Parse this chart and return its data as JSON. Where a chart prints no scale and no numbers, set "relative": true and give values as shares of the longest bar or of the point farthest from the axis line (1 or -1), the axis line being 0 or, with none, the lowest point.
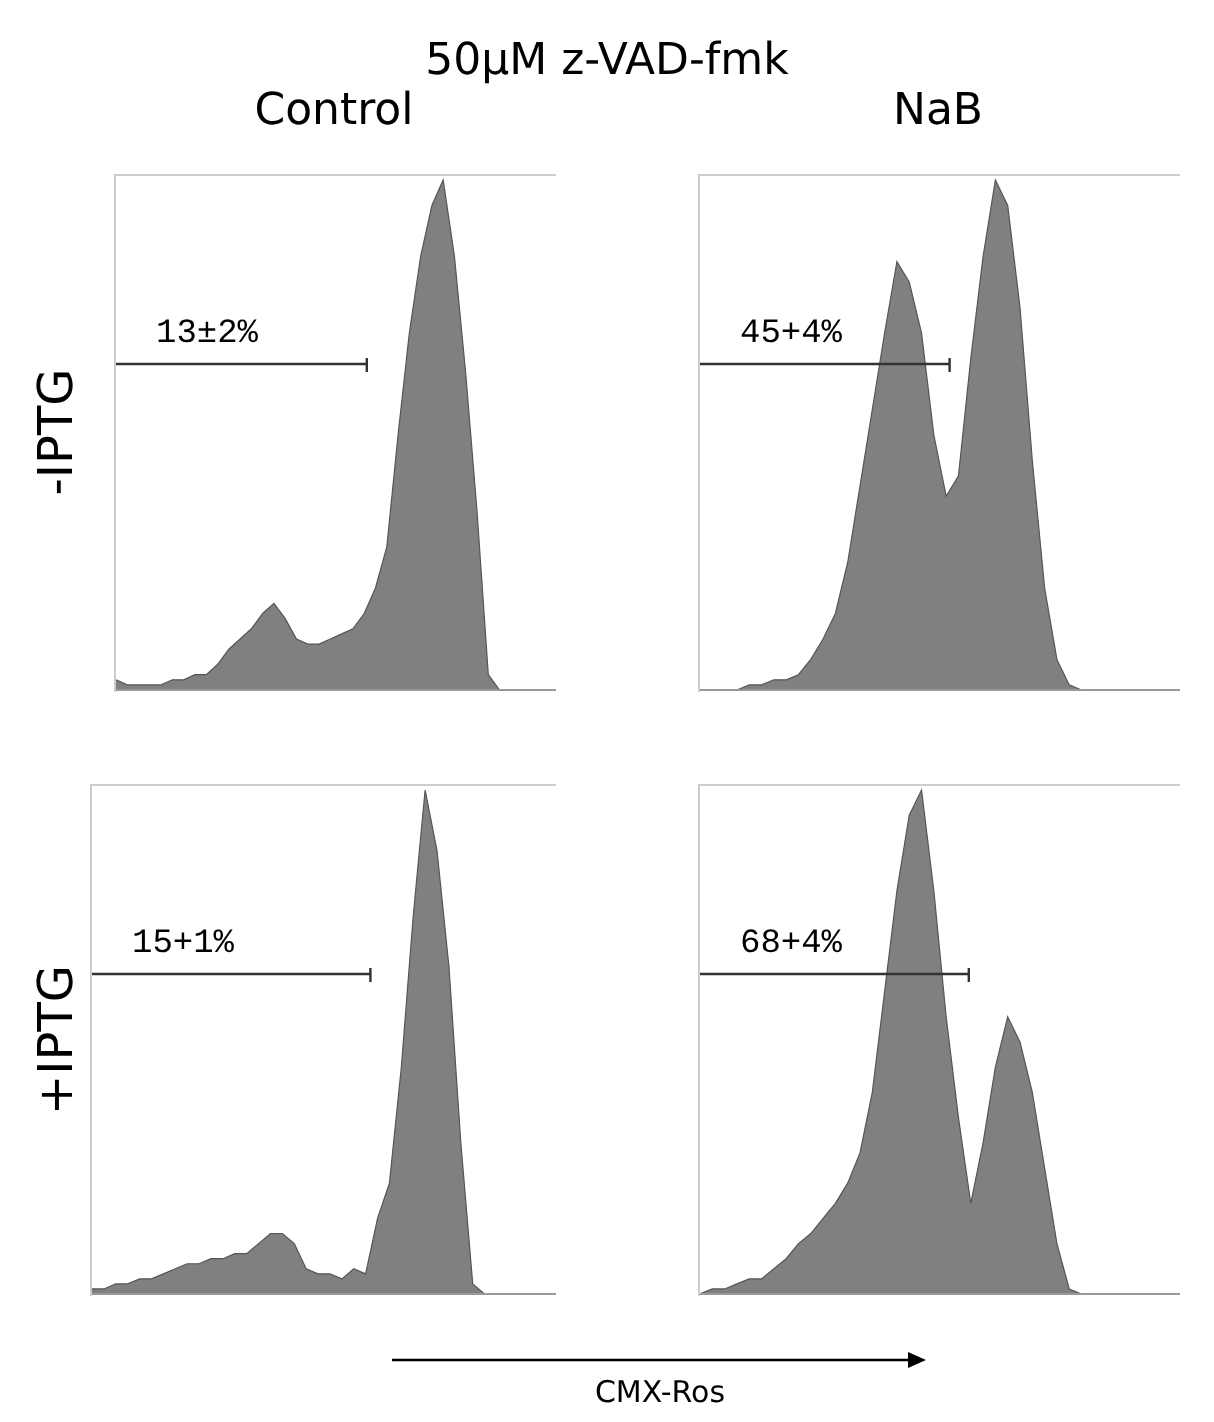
{
  "chart_data": [
    {
      "type": "area",
      "relative": true,
      "subtitle": "50μM z-VAD-fmk",
      "title": "Control",
      "ylabel": "-IPTG",
      "annotations": [
        "13±2%"
      ],
      "color": "#808080",
      "categories": [
        null,
        null,
        null,
        null,
        null,
        null,
        null,
        null,
        null,
        null,
        null,
        null,
        null,
        null,
        null,
        null,
        null,
        null,
        null,
        null,
        null,
        null,
        null,
        null,
        null,
        null,
        null,
        null,
        null,
        null,
        null,
        null,
        null,
        null,
        null,
        null,
        null,
        null,
        null,
        null
      ],
      "values": [
        0.02,
        0.01,
        0.01,
        0.01,
        0.01,
        0.02,
        0.02,
        0.03,
        0.03,
        0.05,
        0.08,
        0.1,
        0.12,
        0.15,
        0.17,
        0.14,
        0.1,
        0.09,
        0.09,
        0.1,
        0.11,
        0.12,
        0.15,
        0.2,
        0.28,
        0.5,
        0.7,
        0.85,
        0.95,
        1.0,
        0.85,
        0.62,
        0.35,
        0.03,
        0,
        0,
        0,
        0,
        0,
        0
      ]
    },
    {
      "type": "area",
      "relative": true,
      "title": "NaB",
      "annotations": [
        "45+4%"
      ],
      "color": "#808080",
      "categories": [
        null,
        null,
        null,
        null,
        null,
        null,
        null,
        null,
        null,
        null,
        null,
        null,
        null,
        null,
        null,
        null,
        null,
        null,
        null,
        null,
        null,
        null,
        null,
        null,
        null,
        null,
        null,
        null,
        null,
        null,
        null,
        null,
        null,
        null,
        null,
        null,
        null,
        null,
        null,
        null
      ],
      "values": [
        0,
        0,
        0,
        0,
        0.01,
        0.01,
        0.02,
        0.02,
        0.03,
        0.06,
        0.1,
        0.15,
        0.25,
        0.4,
        0.55,
        0.7,
        0.84,
        0.8,
        0.7,
        0.5,
        0.38,
        0.42,
        0.65,
        0.85,
        1.0,
        0.95,
        0.75,
        0.45,
        0.2,
        0.06,
        0.01,
        0,
        0,
        0,
        0,
        0,
        0,
        0,
        0,
        0
      ]
    },
    {
      "type": "area",
      "relative": true,
      "ylabel": "+IPTG",
      "xlabel": "CMX-Ros",
      "annotations": [
        "15+1%"
      ],
      "color": "#808080",
      "categories": [
        null,
        null,
        null,
        null,
        null,
        null,
        null,
        null,
        null,
        null,
        null,
        null,
        null,
        null,
        null,
        null,
        null,
        null,
        null,
        null,
        null,
        null,
        null,
        null,
        null,
        null,
        null,
        null,
        null,
        null,
        null,
        null,
        null,
        null,
        null,
        null,
        null,
        null,
        null,
        null
      ],
      "values": [
        0.01,
        0.01,
        0.02,
        0.02,
        0.03,
        0.03,
        0.04,
        0.05,
        0.06,
        0.06,
        0.07,
        0.07,
        0.08,
        0.08,
        0.1,
        0.12,
        0.12,
        0.1,
        0.05,
        0.04,
        0.04,
        0.03,
        0.05,
        0.04,
        0.15,
        0.22,
        0.45,
        0.75,
        1.0,
        0.88,
        0.65,
        0.3,
        0.02,
        0,
        0,
        0,
        0,
        0,
        0,
        0
      ]
    },
    {
      "type": "area",
      "relative": true,
      "annotations": [
        "68+4%"
      ],
      "color": "#808080",
      "categories": [
        null,
        null,
        null,
        null,
        null,
        null,
        null,
        null,
        null,
        null,
        null,
        null,
        null,
        null,
        null,
        null,
        null,
        null,
        null,
        null,
        null,
        null,
        null,
        null,
        null,
        null,
        null,
        null,
        null,
        null,
        null,
        null,
        null,
        null,
        null,
        null,
        null,
        null,
        null,
        null
      ],
      "values": [
        0,
        0.01,
        0.01,
        0.02,
        0.03,
        0.03,
        0.05,
        0.07,
        0.1,
        0.12,
        0.15,
        0.18,
        0.22,
        0.28,
        0.4,
        0.6,
        0.8,
        0.95,
        1.0,
        0.8,
        0.55,
        0.35,
        0.18,
        0.3,
        0.45,
        0.55,
        0.5,
        0.4,
        0.25,
        0.1,
        0.01,
        0,
        0,
        0,
        0,
        0,
        0,
        0,
        0,
        0
      ]
    }
  ]
}
